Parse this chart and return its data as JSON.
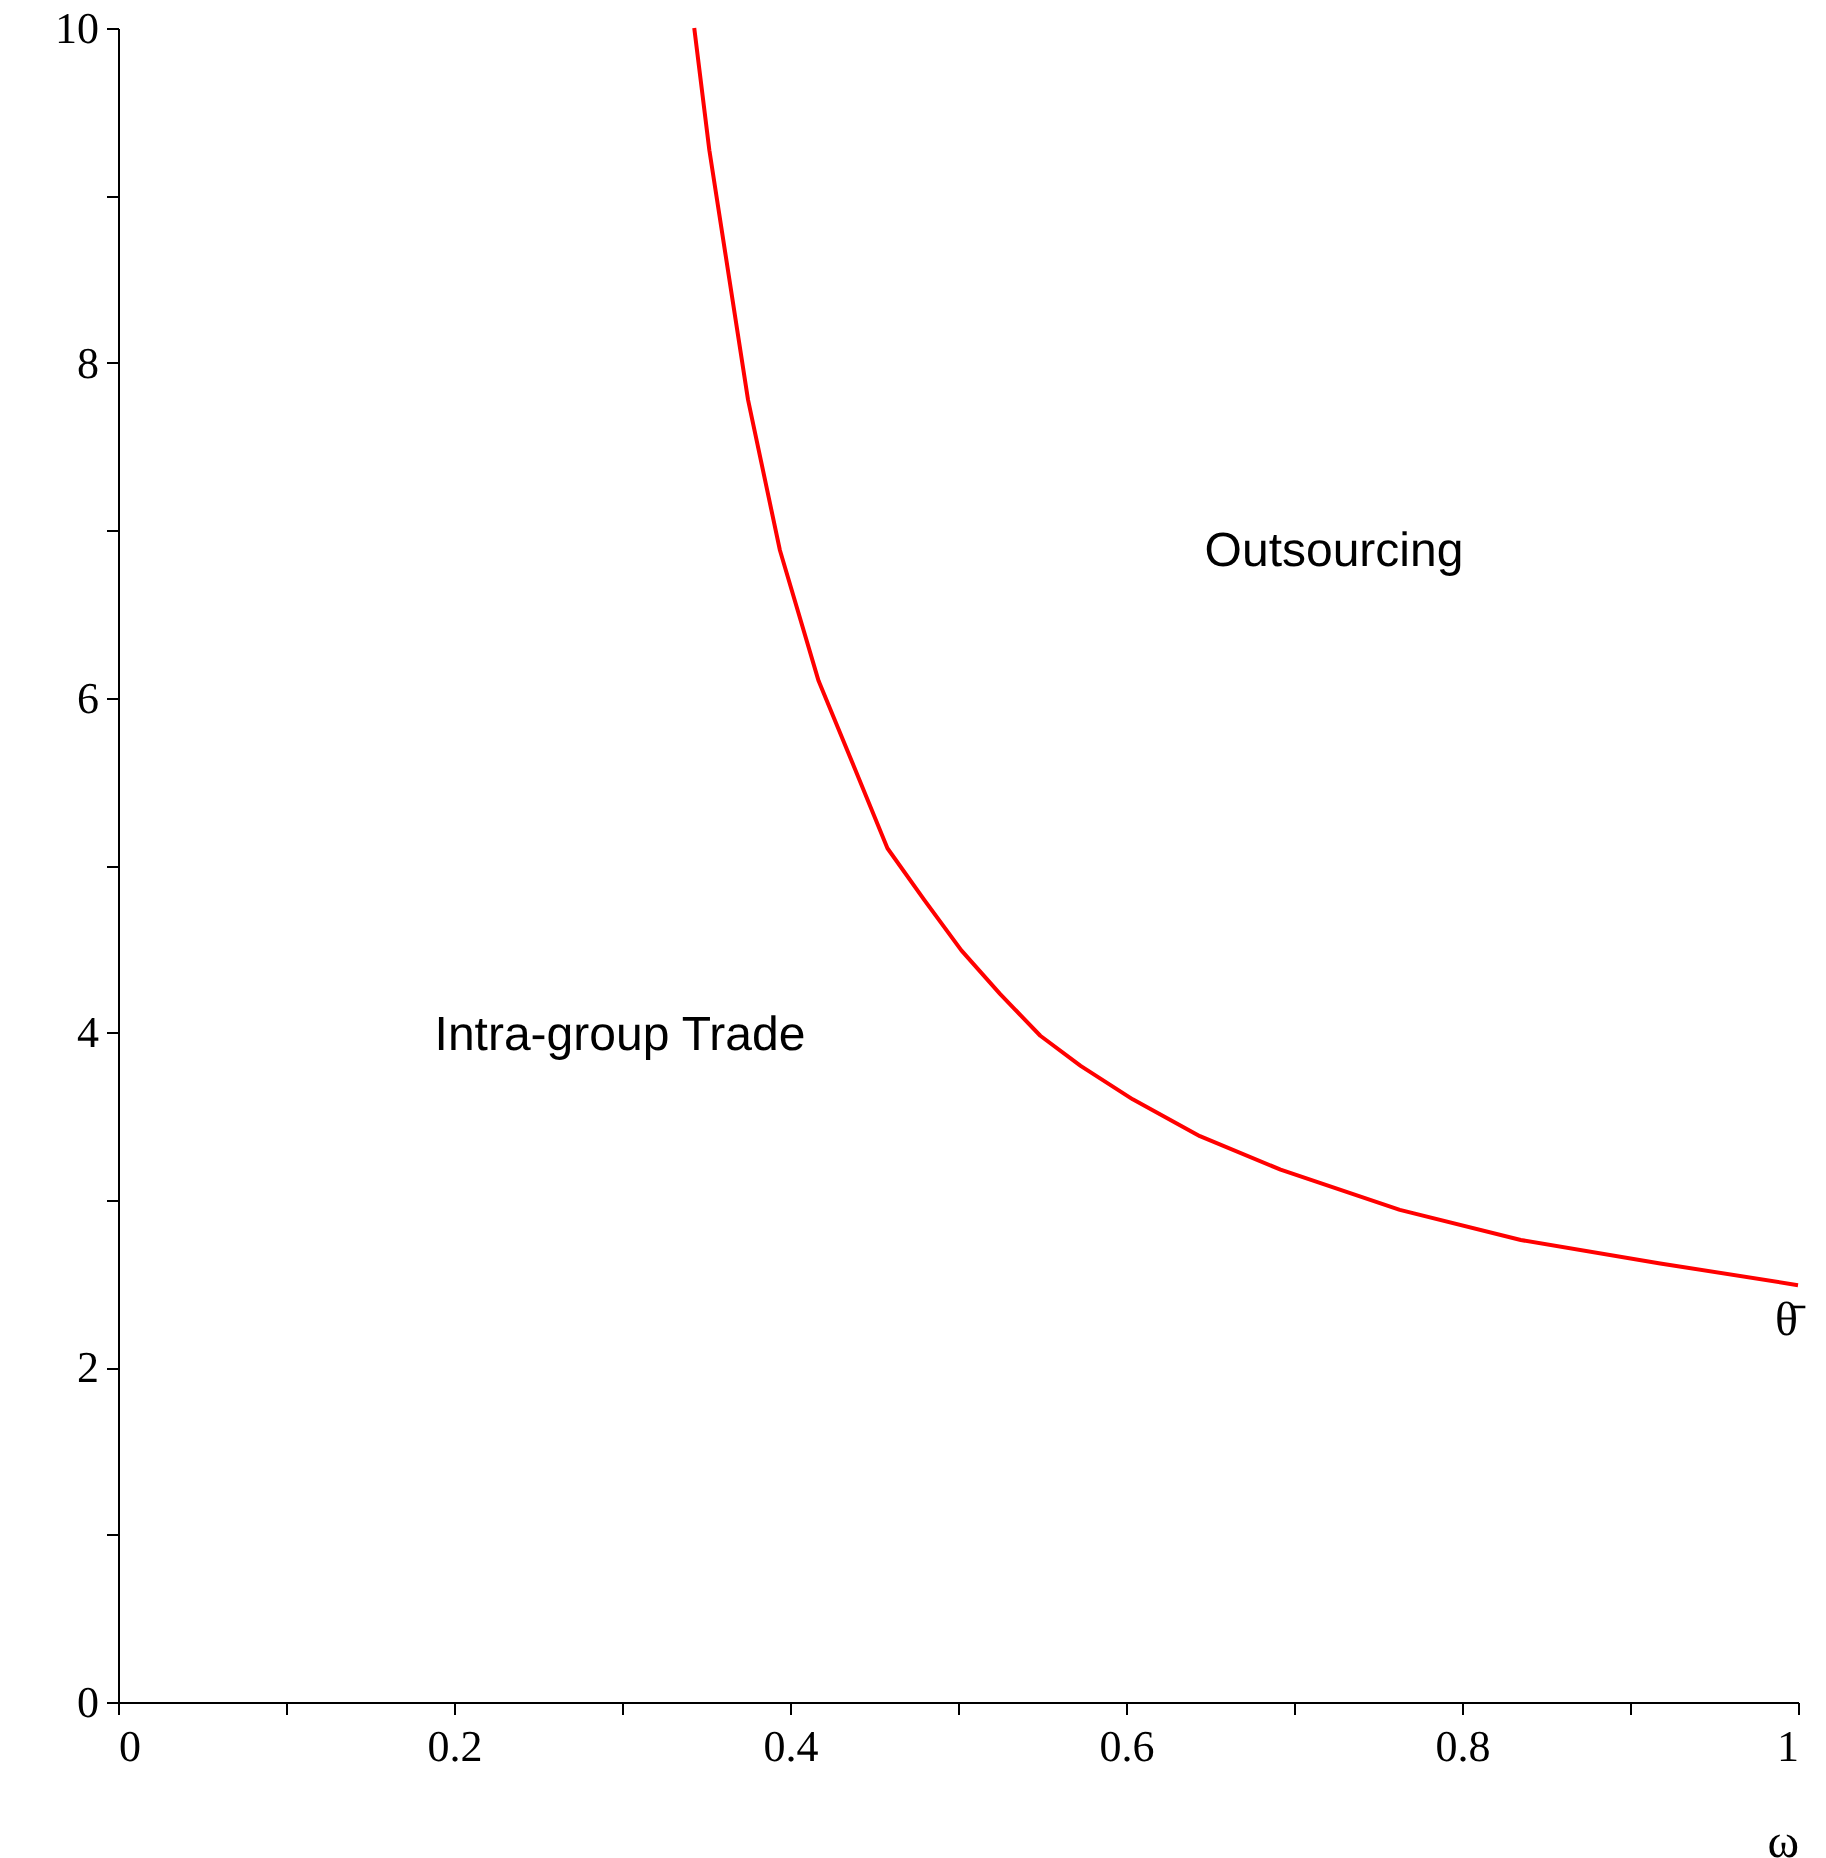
{
  "chart_data": {
    "type": "line",
    "xlabel": "ω",
    "x": [
      0.343,
      0.352,
      0.375,
      0.394,
      0.417,
      0.438,
      0.458,
      0.48,
      0.502,
      0.525,
      0.549,
      0.573,
      0.604,
      0.644,
      0.692,
      0.763,
      0.835,
      0.918,
      1.0
    ],
    "series": [
      {
        "name": "θ̄",
        "color": "#ff0000",
        "values": [
          10,
          9.27,
          7.78,
          6.88,
          6.1,
          5.59,
          5.1,
          4.79,
          4.49,
          4.23,
          3.98,
          3.8,
          3.6,
          3.38,
          3.18,
          2.94,
          2.76,
          2.62,
          2.49
        ]
      }
    ],
    "xlim": [
      0,
      1
    ],
    "ylim": [
      0,
      10
    ],
    "xticks": [
      0,
      {
        "value": 0.1,
        "label": null
      },
      0.2,
      {
        "value": 0.3,
        "label": null
      },
      0.4,
      {
        "value": 0.5,
        "label": null
      },
      0.6,
      {
        "value": 0.7,
        "label": null
      },
      0.8,
      {
        "value": 0.9,
        "label": null
      },
      1
    ],
    "yticks": [
      0,
      {
        "value": 1,
        "label": null
      },
      2,
      {
        "value": 3,
        "label": null
      },
      4,
      {
        "value": 5,
        "label": null
      },
      6,
      {
        "value": 7,
        "label": null
      },
      8,
      {
        "value": 9,
        "label": null
      },
      10
    ],
    "annotations": [
      "Outsourcing",
      "Intra-group Trade"
    ],
    "grid": false,
    "marker": "none",
    "line_style": "solid"
  }
}
